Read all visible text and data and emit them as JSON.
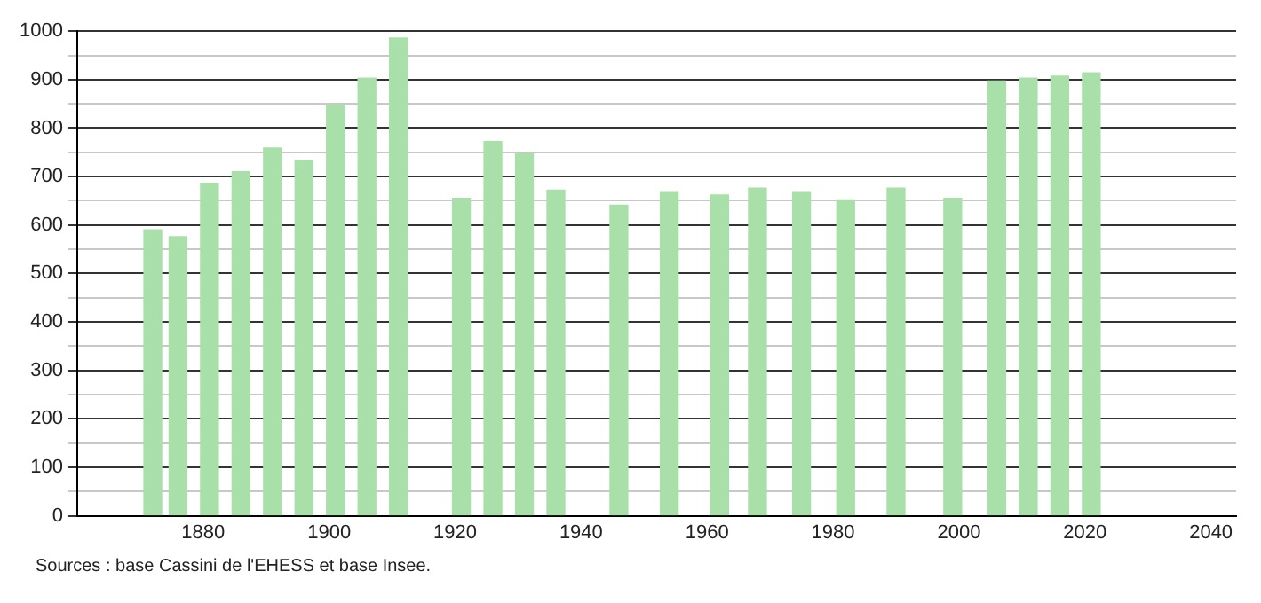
{
  "chart_data": {
    "type": "bar",
    "x": [
      1872,
      1876,
      1881,
      1886,
      1891,
      1896,
      1901,
      1906,
      1911,
      1921,
      1926,
      1931,
      1936,
      1946,
      1954,
      1962,
      1968,
      1975,
      1982,
      1990,
      1999,
      2006,
      2011,
      2016,
      2021
    ],
    "values": [
      590,
      576,
      686,
      710,
      759,
      734,
      848,
      903,
      986,
      655,
      772,
      748,
      672,
      641,
      669,
      662,
      676,
      669,
      652,
      676,
      655,
      897,
      903,
      907,
      914
    ],
    "color": "#a9dfa9",
    "xlim": [
      1860,
      2044
    ],
    "xticks": [
      1880,
      1900,
      1920,
      1940,
      1960,
      1980,
      2000,
      2020,
      2040
    ],
    "ylim": [
      0,
      1000
    ],
    "yticks": [
      0,
      {
        "value": 50,
        "label": null
      },
      100,
      {
        "value": 150,
        "label": null
      },
      200,
      {
        "value": 250,
        "label": null
      },
      300,
      {
        "value": 350,
        "label": null
      },
      400,
      {
        "value": 450,
        "label": null
      },
      500,
      {
        "value": 550,
        "label": null
      },
      600,
      {
        "value": 650,
        "label": null
      },
      700,
      {
        "value": 750,
        "label": null
      },
      800,
      {
        "value": 850,
        "label": null
      },
      900,
      {
        "value": 950,
        "label": null
      },
      1000
    ],
    "grid": "y",
    "annotations": [
      "Sources : base Cassini de l'EHESS et base Insee."
    ]
  }
}
